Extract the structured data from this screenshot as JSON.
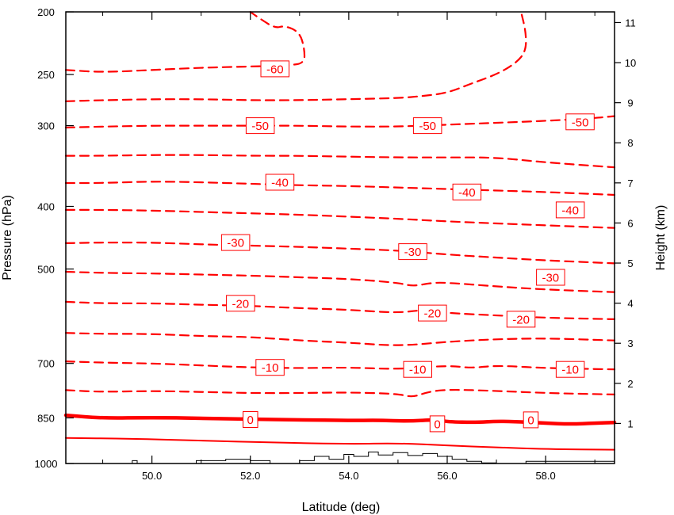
{
  "chart_data": {
    "type": "contour",
    "title": "",
    "xlabel": "Latitude (deg)",
    "ylabel_left": "Pressure (hPa)",
    "ylabel_right": "Height (km)",
    "xlim": [
      48.25,
      59.4
    ],
    "pressure_range_hPa": [
      1000,
      200
    ],
    "y_scale": "log-pressure",
    "x_ticks": [
      {
        "value": 50,
        "label": "50.0"
      },
      {
        "value": 52,
        "label": "52.0"
      },
      {
        "value": 54,
        "label": "54.0"
      },
      {
        "value": 56,
        "label": "56.0"
      },
      {
        "value": 58,
        "label": "58.0"
      }
    ],
    "pressure_ticks": [
      {
        "value": 200,
        "label": "200"
      },
      {
        "value": 250,
        "label": "250"
      },
      {
        "value": 300,
        "label": "300"
      },
      {
        "value": 400,
        "label": "400"
      },
      {
        "value": 500,
        "label": "500"
      },
      {
        "value": 700,
        "label": "700"
      },
      {
        "value": 850,
        "label": "850"
      },
      {
        "value": 1000,
        "label": "1000"
      }
    ],
    "height_ticks": [
      {
        "value": 1,
        "label": "1"
      },
      {
        "value": 2,
        "label": "2"
      },
      {
        "value": 3,
        "label": "3"
      },
      {
        "value": 4,
        "label": "4"
      },
      {
        "value": 5,
        "label": "5"
      },
      {
        "value": 6,
        "label": "6"
      },
      {
        "value": 7,
        "label": "7"
      },
      {
        "value": 8,
        "label": "8"
      },
      {
        "value": 9,
        "label": "9"
      },
      {
        "value": 10,
        "label": "10"
      },
      {
        "value": 11,
        "label": "11"
      }
    ],
    "contour_color": "#ff0000",
    "terrain_color": "#000000",
    "contours": [
      {
        "level": 10,
        "style": "solid",
        "points": [
          [
            48.25,
            913
          ],
          [
            49.5,
            915
          ],
          [
            51.0,
            922
          ],
          [
            52.5,
            928
          ],
          [
            54.0,
            933
          ],
          [
            55.0,
            930
          ],
          [
            56.0,
            938
          ],
          [
            57.0,
            944
          ],
          [
            58.0,
            950
          ],
          [
            59.4,
            952
          ]
        ]
      },
      {
        "level": 0,
        "style": "solid-thick",
        "points": [
          [
            48.25,
            842
          ],
          [
            49.0,
            851
          ],
          [
            50.0,
            849
          ],
          [
            51.0,
            851
          ],
          [
            52.0,
            854
          ],
          [
            53.0,
            856
          ],
          [
            54.0,
            858
          ],
          [
            54.6,
            857
          ],
          [
            55.2,
            860
          ],
          [
            55.8,
            855
          ],
          [
            56.0,
            862
          ],
          [
            56.6,
            864
          ],
          [
            57.0,
            860
          ],
          [
            57.5,
            862
          ],
          [
            58.0,
            866
          ],
          [
            58.5,
            869
          ],
          [
            59.0,
            866
          ],
          [
            59.4,
            864
          ]
        ]
      },
      {
        "level": -5,
        "style": "dashed",
        "points": [
          [
            48.25,
            770
          ],
          [
            49.0,
            775
          ],
          [
            50.0,
            772
          ],
          [
            51.0,
            775
          ],
          [
            52.0,
            778
          ],
          [
            53.0,
            778
          ],
          [
            54.0,
            776
          ],
          [
            55.0,
            780
          ],
          [
            55.3,
            790
          ],
          [
            55.6,
            775
          ],
          [
            56.0,
            768
          ],
          [
            57.0,
            772
          ],
          [
            58.0,
            778
          ],
          [
            59.4,
            782
          ]
        ]
      },
      {
        "level": -10,
        "style": "dashed",
        "points": [
          [
            48.25,
            695
          ],
          [
            49.0,
            698
          ],
          [
            50.0,
            700
          ],
          [
            51.0,
            705
          ],
          [
            52.0,
            710
          ],
          [
            53.0,
            712
          ],
          [
            54.0,
            710
          ],
          [
            55.0,
            715
          ],
          [
            56.0,
            705
          ],
          [
            56.5,
            712
          ],
          [
            57.0,
            705
          ],
          [
            58.0,
            712
          ],
          [
            59.4,
            715
          ]
        ]
      },
      {
        "level": -15,
        "style": "dashed",
        "points": [
          [
            48.25,
            628
          ],
          [
            49.0,
            630
          ],
          [
            50.0,
            630
          ],
          [
            51.0,
            635
          ],
          [
            52.0,
            637
          ],
          [
            53.0,
            645
          ],
          [
            54.0,
            650
          ],
          [
            55.0,
            658
          ],
          [
            56.0,
            648
          ],
          [
            57.0,
            642
          ],
          [
            58.0,
            640
          ],
          [
            59.4,
            645
          ]
        ]
      },
      {
        "level": -20,
        "style": "dashed",
        "points": [
          [
            48.25,
            562
          ],
          [
            49.0,
            565
          ],
          [
            50.0,
            565
          ],
          [
            51.0,
            568
          ],
          [
            52.0,
            570
          ],
          [
            53.0,
            575
          ],
          [
            54.0,
            578
          ],
          [
            55.0,
            585
          ],
          [
            55.5,
            578
          ],
          [
            56.0,
            585
          ],
          [
            57.0,
            590
          ],
          [
            58.0,
            595
          ],
          [
            59.4,
            598
          ]
        ]
      },
      {
        "level": -25,
        "style": "dashed",
        "points": [
          [
            48.25,
            505
          ],
          [
            49.0,
            507
          ],
          [
            50.0,
            508
          ],
          [
            51.0,
            510
          ],
          [
            52.0,
            512
          ],
          [
            53.0,
            515
          ],
          [
            54.0,
            518
          ],
          [
            55.0,
            525
          ],
          [
            55.3,
            532
          ],
          [
            55.7,
            525
          ],
          [
            56.0,
            525
          ],
          [
            57.0,
            532
          ],
          [
            58.0,
            538
          ],
          [
            59.4,
            543
          ]
        ]
      },
      {
        "level": -30,
        "style": "dashed",
        "points": [
          [
            48.25,
            456
          ],
          [
            49.0,
            455
          ],
          [
            50.0,
            455
          ],
          [
            51.0,
            458
          ],
          [
            52.0,
            460
          ],
          [
            53.0,
            462
          ],
          [
            54.0,
            465
          ],
          [
            55.0,
            468
          ],
          [
            56.0,
            475
          ],
          [
            57.0,
            480
          ],
          [
            58.0,
            485
          ],
          [
            59.4,
            490
          ]
        ]
      },
      {
        "level": -35,
        "style": "dashed",
        "points": [
          [
            48.25,
            405
          ],
          [
            49.0,
            405
          ],
          [
            50.0,
            406
          ],
          [
            51.0,
            408
          ],
          [
            52.0,
            410
          ],
          [
            53.0,
            412
          ],
          [
            54.0,
            415
          ],
          [
            55.0,
            418
          ],
          [
            56.0,
            422
          ],
          [
            57.0,
            425
          ],
          [
            58.0,
            428
          ],
          [
            59.4,
            432
          ]
        ]
      },
      {
        "level": -40,
        "style": "dashed",
        "points": [
          [
            48.25,
            368
          ],
          [
            49.0,
            368
          ],
          [
            50.0,
            366
          ],
          [
            51.0,
            367
          ],
          [
            52.0,
            369
          ],
          [
            53.0,
            371
          ],
          [
            54.0,
            372
          ],
          [
            55.0,
            374
          ],
          [
            56.0,
            376
          ],
          [
            57.0,
            378
          ],
          [
            58.0,
            380
          ],
          [
            59.4,
            384
          ]
        ]
      },
      {
        "level": -45,
        "style": "dashed",
        "points": [
          [
            48.25,
            334
          ],
          [
            49.0,
            334
          ],
          [
            50.0,
            333
          ],
          [
            51.0,
            333
          ],
          [
            52.0,
            334
          ],
          [
            53.0,
            334
          ],
          [
            54.0,
            335
          ],
          [
            55.0,
            336
          ],
          [
            56.0,
            336
          ],
          [
            57.0,
            336
          ],
          [
            58.0,
            342
          ],
          [
            59.4,
            348
          ]
        ]
      },
      {
        "level": -50,
        "style": "dashed",
        "points": [
          [
            48.25,
            302
          ],
          [
            49.0,
            301
          ],
          [
            50.0,
            300
          ],
          [
            51.0,
            300
          ],
          [
            52.0,
            300
          ],
          [
            53.0,
            300
          ],
          [
            54.0,
            301
          ],
          [
            55.0,
            301
          ],
          [
            56.0,
            299
          ],
          [
            57.0,
            297
          ],
          [
            58.0,
            295
          ],
          [
            59.0,
            292
          ],
          [
            59.4,
            290
          ]
        ]
      },
      {
        "level": -55,
        "style": "dashed",
        "points": [
          [
            48.25,
            275
          ],
          [
            49.0,
            274
          ],
          [
            50.0,
            273
          ],
          [
            51.0,
            273
          ],
          [
            52.0,
            274
          ],
          [
            53.0,
            274
          ],
          [
            54.0,
            273
          ],
          [
            55.0,
            272
          ],
          [
            55.5,
            270
          ],
          [
            56.0,
            267
          ],
          [
            56.5,
            258
          ],
          [
            57.0,
            250
          ],
          [
            57.4,
            240
          ],
          [
            57.6,
            230
          ],
          [
            57.6,
            215
          ],
          [
            57.5,
            200
          ]
        ]
      },
      {
        "level": -60,
        "style": "dashed",
        "points": [
          [
            48.25,
            246
          ],
          [
            49.0,
            248
          ],
          [
            50.0,
            246
          ],
          [
            51.0,
            244
          ],
          [
            52.0,
            243
          ],
          [
            52.8,
            242
          ],
          [
            53.1,
            240
          ],
          [
            53.1,
            228
          ],
          [
            53.0,
            215
          ],
          [
            52.7,
            210
          ],
          [
            52.5,
            212
          ],
          [
            52.2,
            205
          ],
          [
            52.0,
            200
          ]
        ]
      }
    ],
    "contour_labels": [
      {
        "text": "-60",
        "lat": 52.5,
        "p": 245
      },
      {
        "text": "-50",
        "lat": 52.2,
        "p": 300
      },
      {
        "text": "-50",
        "lat": 55.6,
        "p": 300
      },
      {
        "text": "-50",
        "lat": 58.7,
        "p": 296
      },
      {
        "text": "-40",
        "lat": 52.6,
        "p": 367
      },
      {
        "text": "-40",
        "lat": 56.4,
        "p": 380
      },
      {
        "text": "-40",
        "lat": 58.5,
        "p": 405
      },
      {
        "text": "-30",
        "lat": 51.7,
        "p": 455
      },
      {
        "text": "-30",
        "lat": 55.3,
        "p": 470
      },
      {
        "text": "-30",
        "lat": 58.1,
        "p": 515
      },
      {
        "text": "-20",
        "lat": 51.8,
        "p": 565
      },
      {
        "text": "-20",
        "lat": 55.7,
        "p": 585
      },
      {
        "text": "-20",
        "lat": 57.5,
        "p": 598
      },
      {
        "text": "-10",
        "lat": 52.4,
        "p": 710
      },
      {
        "text": "-10",
        "lat": 55.4,
        "p": 715
      },
      {
        "text": "-10",
        "lat": 58.5,
        "p": 715
      },
      {
        "text": "0",
        "lat": 52.0,
        "p": 855
      },
      {
        "text": "0",
        "lat": 55.8,
        "p": 868
      },
      {
        "text": "0",
        "lat": 57.7,
        "p": 856
      }
    ],
    "terrain": [
      [
        49.6,
        1000
      ],
      [
        49.6,
        990
      ],
      [
        49.7,
        990
      ],
      [
        49.7,
        1000
      ],
      [
        50.9,
        1000
      ],
      [
        50.9,
        990
      ],
      [
        51.5,
        990
      ],
      [
        51.5,
        985
      ],
      [
        52.0,
        985
      ],
      [
        52.0,
        990
      ],
      [
        52.4,
        990
      ],
      [
        52.4,
        1000
      ],
      [
        53.0,
        1000
      ],
      [
        53.0,
        990
      ],
      [
        53.3,
        990
      ],
      [
        53.3,
        975
      ],
      [
        53.6,
        975
      ],
      [
        53.6,
        985
      ],
      [
        53.9,
        985
      ],
      [
        53.9,
        968
      ],
      [
        54.1,
        968
      ],
      [
        54.1,
        975
      ],
      [
        54.4,
        975
      ],
      [
        54.4,
        960
      ],
      [
        54.6,
        960
      ],
      [
        54.6,
        970
      ],
      [
        54.9,
        970
      ],
      [
        54.9,
        962
      ],
      [
        55.2,
        962
      ],
      [
        55.2,
        972
      ],
      [
        55.5,
        972
      ],
      [
        55.5,
        965
      ],
      [
        55.8,
        965
      ],
      [
        55.8,
        975
      ],
      [
        56.1,
        975
      ],
      [
        56.1,
        985
      ],
      [
        56.4,
        985
      ],
      [
        56.4,
        992
      ],
      [
        56.7,
        992
      ],
      [
        56.7,
        998
      ],
      [
        57.0,
        998
      ],
      [
        57.0,
        1000
      ],
      [
        57.6,
        1000
      ],
      [
        57.6,
        992
      ],
      [
        59.4,
        992
      ]
    ]
  }
}
